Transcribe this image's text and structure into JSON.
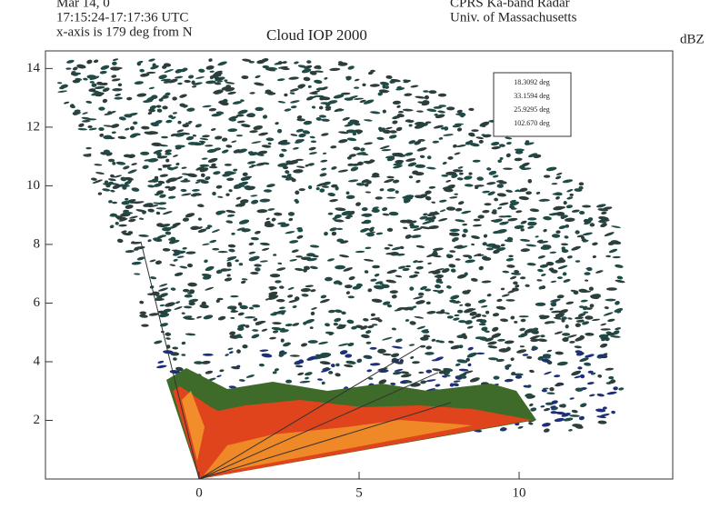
{
  "chart_data": {
    "type": "rhi",
    "header_left": [
      "Mar 14, 0",
      "17:15:24-17:17:36 UTC",
      "x-axis is 179 deg from N"
    ],
    "title": "Cloud IOP 2000",
    "header_right": [
      "CPRS Ka-band Radar",
      "Univ. of Massachusetts"
    ],
    "colorbar_label": "dBZ",
    "xlim": [
      -4.8,
      14.8
    ],
    "xticks": [
      0,
      5,
      10
    ],
    "ylim": [
      0,
      14.6
    ],
    "yticks": [
      2,
      4,
      6,
      8,
      10,
      12,
      14
    ],
    "angles": [
      18.3092,
      33.1594,
      25.9295,
      102.67
    ],
    "angle_labels": [
      "18.3092 deg",
      "33.1594 deg",
      "25.9295 deg",
      "102.670 deg"
    ]
  }
}
